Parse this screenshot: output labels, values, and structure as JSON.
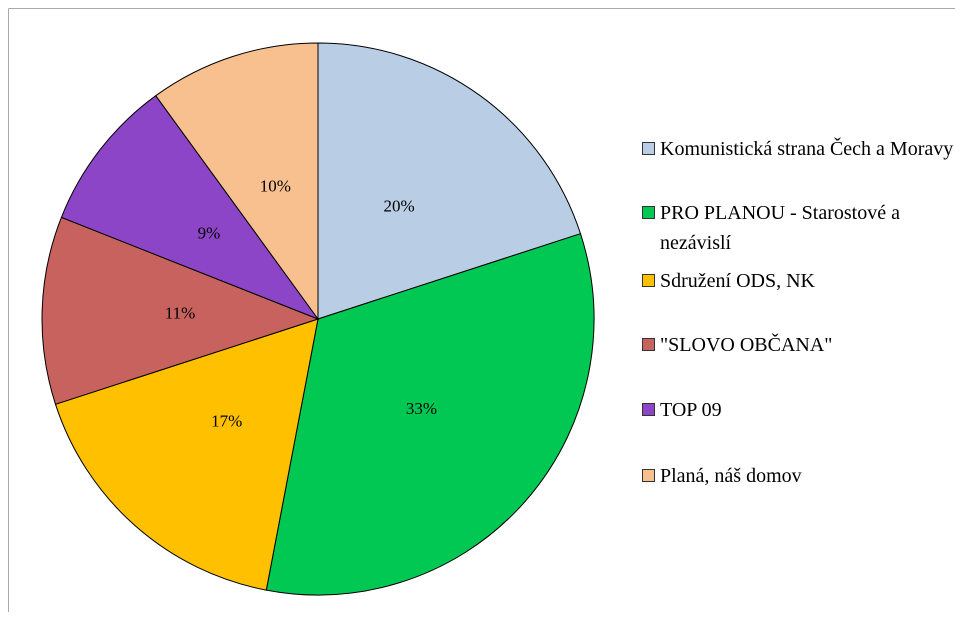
{
  "chart_data": {
    "type": "pie",
    "categories": [
      "Komunistická strana Čech a Moravy",
      "PRO PLANOU - Starostové a nezávislí",
      "Sdružení ODS, NK",
      "\"SLOVO OBČANA\"",
      "TOP 09",
      "Planá, náš domov"
    ],
    "values": [
      20,
      33,
      17,
      11,
      9,
      10
    ],
    "value_labels": [
      "20%",
      "33%",
      "17%",
      "11%",
      "9%",
      "10%"
    ],
    "colors": [
      "#b9cde5",
      "#00c853",
      "#ffc000",
      "#c8625e",
      "#8d45c8",
      "#f9c08f"
    ],
    "legend": "right"
  }
}
